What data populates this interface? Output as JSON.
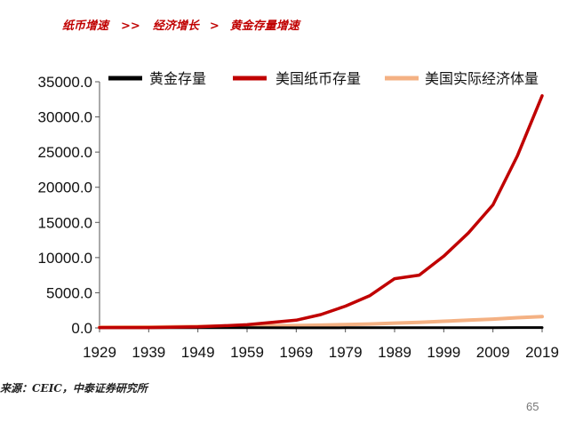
{
  "header": {
    "part1": "纸币增速",
    "sep1": ">>",
    "part2": "经济增长",
    "sep2": ">",
    "part3": "黄金存量增速"
  },
  "source": "来源：CEIC，中泰证券研究所",
  "page_number": "65",
  "chart_data": {
    "type": "line",
    "title": "",
    "xlabel": "",
    "ylabel": "",
    "x": [
      1929,
      1939,
      1949,
      1959,
      1969,
      1974,
      1979,
      1984,
      1989,
      1994,
      1999,
      2004,
      2009,
      2014,
      2019
    ],
    "xticks": [
      "1929",
      "1939",
      "1949",
      "1959",
      "1969",
      "1979",
      "1989",
      "1999",
      "2009",
      "2019"
    ],
    "yticks": [
      "0.0",
      "5000.0",
      "10000.0",
      "15000.0",
      "20000.0",
      "25000.0",
      "30000.0",
      "35000.0"
    ],
    "ylim": [
      0,
      35000
    ],
    "xlim": [
      1929,
      2019
    ],
    "grid": false,
    "legend_position": "top",
    "series": [
      {
        "name": "黄金存量",
        "color": "#000000",
        "values": [
          20,
          25,
          25,
          20,
          15,
          15,
          20,
          25,
          25,
          25,
          30,
          30,
          40,
          45,
          50
        ]
      },
      {
        "name": "美国纸币存量",
        "color": "#c00000",
        "values": [
          45,
          55,
          150,
          450,
          1100,
          1900,
          3100,
          4600,
          7000,
          7500,
          10200,
          13500,
          17500,
          24500,
          33000
        ]
      },
      {
        "name": "美国实际经济体量",
        "color": "#f4b183",
        "values": [
          100,
          130,
          200,
          280,
          330,
          390,
          480,
          550,
          680,
          800,
          950,
          1100,
          1250,
          1450,
          1600
        ]
      }
    ]
  }
}
